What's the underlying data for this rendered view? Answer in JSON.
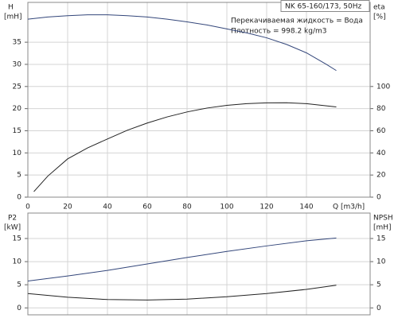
{
  "chart_data": [
    {
      "type": "line",
      "box_title": "NK 65-160/173, 50Hz",
      "annotations": [
        "Перекачиваемая жидкость = Вода",
        "Плотность = 998.2 kg/m3"
      ],
      "ylabel": "H",
      "yunit": "[mH]",
      "y2label": "eta",
      "y2unit": "[%]",
      "xlabel": "Q [m3/h]",
      "xlim": [
        0,
        172
      ],
      "xticks": [
        0,
        20,
        40,
        60,
        80,
        100,
        120,
        140
      ],
      "xtick_labels": true,
      "ylim": [
        0,
        44
      ],
      "yticks": [
        0,
        5,
        10,
        15,
        20,
        25,
        30,
        35
      ],
      "y2lim": [
        0,
        176
      ],
      "y2ticks": [
        0,
        20,
        40,
        60,
        80,
        100
      ],
      "grid": true,
      "series": [
        {
          "color": "#33467a",
          "axis": "y",
          "x": [
            0,
            10,
            20,
            30,
            40,
            50,
            60,
            70,
            80,
            90,
            100,
            110,
            120,
            130,
            140,
            150,
            155
          ],
          "values": [
            40.2,
            40.7,
            41.0,
            41.2,
            41.2,
            41.0,
            40.7,
            40.2,
            39.6,
            38.9,
            38.0,
            37.1,
            36.0,
            34.5,
            32.6,
            30.0,
            28.6
          ]
        },
        {
          "color": "#222222",
          "axis": "y2",
          "x": [
            3,
            10,
            20,
            30,
            40,
            50,
            60,
            70,
            80,
            90,
            100,
            110,
            120,
            130,
            140,
            150,
            155
          ],
          "values": [
            5,
            19,
            34.6,
            44.5,
            52.6,
            60.5,
            67,
            72.5,
            77,
            80.5,
            83,
            84.5,
            85.2,
            85.3,
            84.5,
            82.5,
            81.5
          ]
        }
      ]
    },
    {
      "type": "line",
      "ylabel": "P2",
      "yunit": "[kW]",
      "y2label": "NPSH",
      "y2unit": "[mH]",
      "xlim": [
        0,
        172
      ],
      "xticks": [
        0,
        20,
        40,
        60,
        80,
        100,
        120,
        140
      ],
      "xtick_labels": false,
      "ylim": [
        -1.5,
        20.5
      ],
      "yticks": [
        0,
        5,
        10,
        15
      ],
      "y2lim": [
        -1.5,
        20.5
      ],
      "y2ticks": [
        0,
        5,
        10,
        15
      ],
      "grid": true,
      "series": [
        {
          "color": "#33467a",
          "axis": "y",
          "x": [
            0,
            20,
            40,
            60,
            80,
            100,
            120,
            140,
            155
          ],
          "values": [
            5.8,
            6.9,
            8.1,
            9.5,
            10.9,
            12.2,
            13.4,
            14.5,
            15.1
          ]
        },
        {
          "color": "#222222",
          "axis": "y2",
          "x": [
            0,
            20,
            40,
            60,
            80,
            100,
            120,
            140,
            155
          ],
          "values": [
            3.1,
            2.3,
            1.8,
            1.7,
            1.9,
            2.4,
            3.1,
            4.0,
            4.9
          ]
        }
      ]
    }
  ]
}
